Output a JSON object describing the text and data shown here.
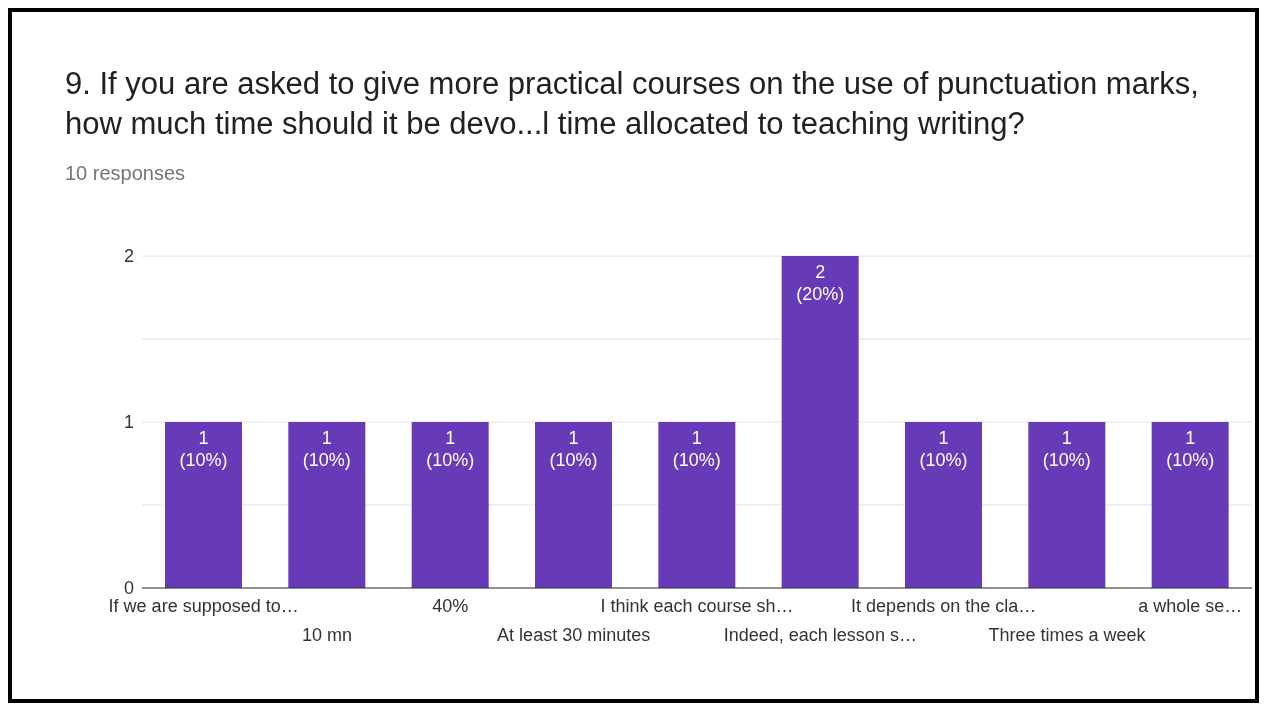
{
  "chart_data": {
    "type": "bar",
    "title": "9. If you are asked to give more practical courses on the use of punctuation marks, how much time should it be devo...l time allocated to teaching writing?",
    "subtitle": "10 responses",
    "categories": [
      "If we are supposed to…",
      "10 mn",
      "40%",
      "At least 30 minutes",
      "I think each course sh…",
      "Indeed, each lesson s…",
      "It depends on the cla…",
      "Three times a week",
      "a whole se…"
    ],
    "values": [
      1,
      1,
      1,
      1,
      1,
      2,
      1,
      1,
      1
    ],
    "value_labels": [
      "1 (10%)",
      "1 (10%)",
      "1 (10%)",
      "1 (10%)",
      "1 (10%)",
      "2 (20%)",
      "1 (10%)",
      "1 (10%)",
      "1 (10%)"
    ],
    "color": "#673ab7",
    "ylim": [
      0,
      2
    ],
    "yticks": [
      0,
      {
        "value": 0.5,
        "label": null
      },
      1,
      {
        "value": 1.5,
        "label": null
      },
      2
    ],
    "grid": "y",
    "legend": false
  }
}
